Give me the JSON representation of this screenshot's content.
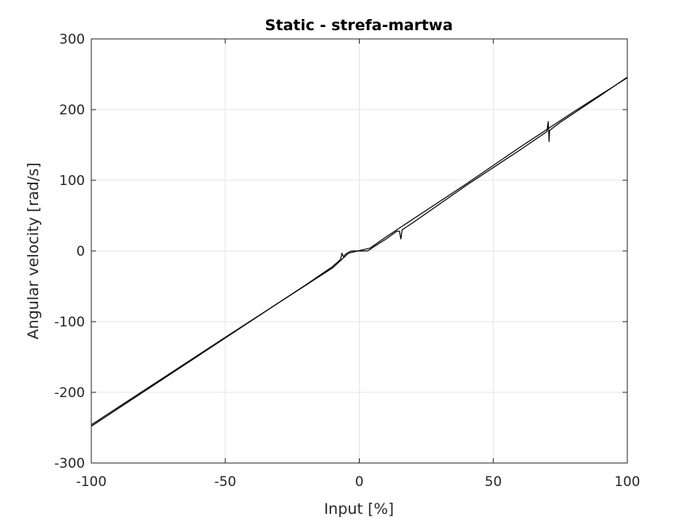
{
  "chart_data": {
    "type": "line",
    "title": "Static - strefa-martwa",
    "xlabel": "Input [%]",
    "ylabel": "Angular velocity [rad/s]",
    "xlim": [
      -100,
      100
    ],
    "ylim": [
      -300,
      300
    ],
    "xticks": [
      -100,
      -50,
      0,
      50,
      100
    ],
    "yticks": [
      -300,
      -200,
      -100,
      0,
      100,
      200,
      300
    ],
    "xtick_labels": [
      "-100",
      "-50",
      "0",
      "50",
      "100"
    ],
    "ytick_labels": [
      "-300",
      "-200",
      "-100",
      "0",
      "100",
      "200",
      "300"
    ],
    "grid": true,
    "series": [
      {
        "color": "#000000",
        "x": [
          -100,
          -50,
          -20,
          -10,
          -7,
          -6.5,
          -6,
          -5,
          -4,
          -3,
          -2,
          -1,
          0,
          1,
          2,
          3,
          4,
          5,
          10,
          14,
          15,
          15.5,
          16,
          20,
          40,
          60,
          70,
          70.5,
          70.8,
          71,
          71.5,
          75,
          90,
          100
        ],
        "y": [
          -248,
          -123,
          -48,
          -22,
          -12,
          -3,
          -8,
          -4,
          -2,
          0,
          0,
          0,
          0,
          0,
          0,
          0,
          2,
          5,
          17,
          28,
          28,
          17,
          30,
          40,
          93,
          143,
          169,
          183,
          155,
          170,
          172,
          182,
          220,
          246
        ]
      },
      {
        "color": "#000000",
        "x": [
          -100,
          -50,
          -10,
          -4,
          4,
          10,
          40,
          60,
          80,
          100
        ],
        "y": [
          -246,
          -122,
          -24,
          -3,
          4,
          20,
          95,
          147,
          197,
          245
        ]
      }
    ]
  }
}
